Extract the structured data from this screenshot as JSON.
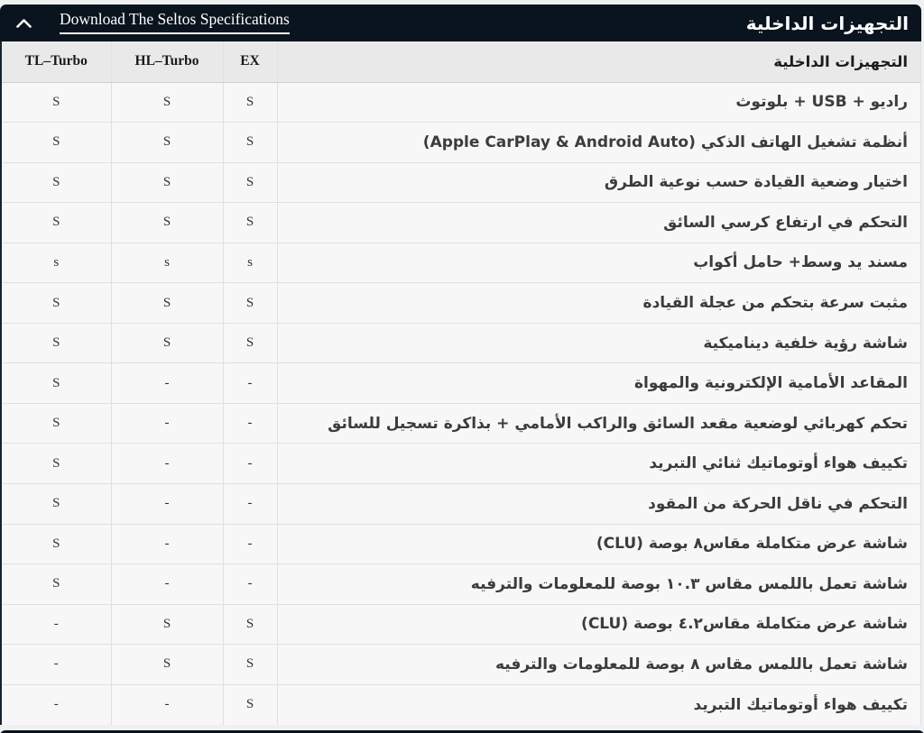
{
  "section": {
    "title": "التجهيزات الداخلية",
    "download_label": "Download The Seltos Specifications",
    "chevron_icon": "chevron-up-icon"
  },
  "table": {
    "feature_header": "التجهيزات الداخلية",
    "columns": [
      "TL–Turbo",
      "HL–Turbo",
      "EX"
    ],
    "rows": [
      {
        "feature": "راديو + USB + بلوتوث",
        "values": [
          "S",
          "S",
          "S"
        ]
      },
      {
        "feature": "أنظمة تشغيل الهاتف الذكي (Apple CarPlay & Android Auto)",
        "values": [
          "S",
          "S",
          "S"
        ]
      },
      {
        "feature": "اختيار وضعية القيادة حسب نوعية الطرق",
        "values": [
          "S",
          "S",
          "S"
        ]
      },
      {
        "feature": "التحكم في ارتفاع كرسي السائق",
        "values": [
          "S",
          "S",
          "S"
        ]
      },
      {
        "feature": "مسند يد وسط+ حامل أكواب",
        "values": [
          "s",
          "s",
          "s"
        ]
      },
      {
        "feature": "مثبت سرعة بتحكم من عجلة القيادة",
        "values": [
          "S",
          "S",
          "S"
        ]
      },
      {
        "feature": "شاشة رؤية خلفية ديناميكية",
        "values": [
          "S",
          "S",
          "S"
        ]
      },
      {
        "feature": "المقاعد الأمامية الإلكترونية والمهواة",
        "values": [
          "S",
          "-",
          "-"
        ]
      },
      {
        "feature": "تحكم كهربائي لوضعية مقعد السائق والراكب الأمامي + بذاكرة تسجيل للسائق",
        "values": [
          "S",
          "-",
          "-"
        ]
      },
      {
        "feature": "تكييف هواء أوتوماتيك ثنائي التبريد",
        "values": [
          "S",
          "-",
          "-"
        ]
      },
      {
        "feature": "التحكم في ناقل الحركة من المقود",
        "values": [
          "S",
          "-",
          "-"
        ]
      },
      {
        "feature": "شاشة عرض متكاملة مقاس٨ بوصة (CLU)",
        "values": [
          "S",
          "-",
          "-"
        ]
      },
      {
        "feature": "شاشة تعمل باللمس مقاس ١٠.٣ بوصة للمعلومات والترفيه",
        "values": [
          "S",
          "-",
          "-"
        ]
      },
      {
        "feature": "شاشة عرض متكاملة مقاس٤.٢ بوصة (CLU)",
        "values": [
          "-",
          "S",
          "S"
        ]
      },
      {
        "feature": "شاشة تعمل باللمس مقاس ٨ بوصة للمعلومات والترفيه",
        "values": [
          "-",
          "S",
          "S"
        ]
      },
      {
        "feature": "تكييف هواء أوتوماتيك التبريد",
        "values": [
          "-",
          "-",
          "S"
        ]
      }
    ]
  },
  "colors": {
    "accent_dark": "#0a141e",
    "header_row_bg": "#e9e9e9",
    "row_bg": "#f7f7f7"
  }
}
